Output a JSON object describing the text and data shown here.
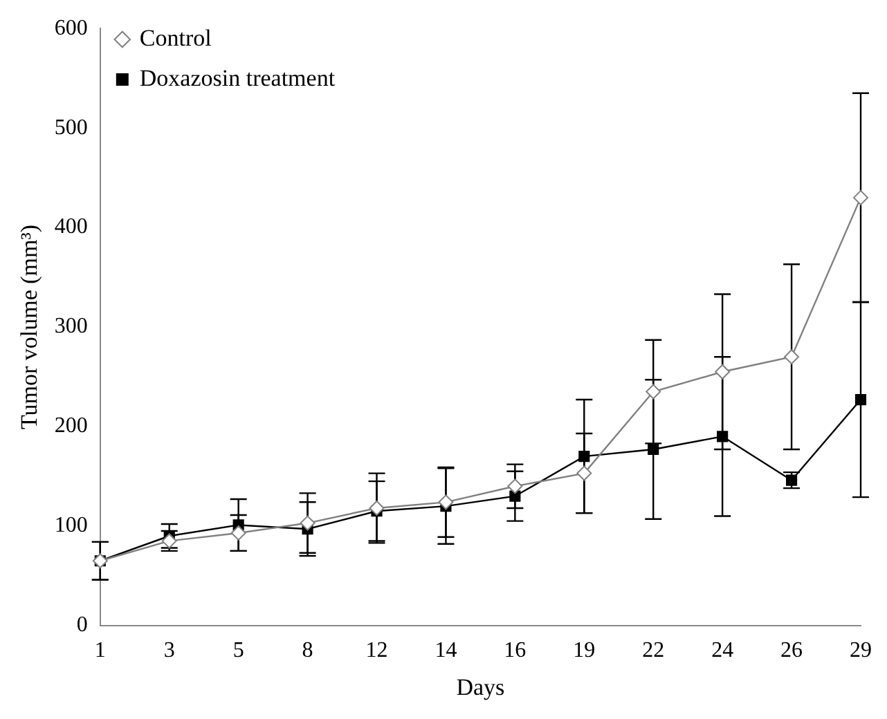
{
  "chart_data": {
    "type": "line",
    "xlabel": "Days",
    "ylabel": "Tumor volume (mm³)",
    "categories": [
      "1",
      "3",
      "5",
      "8",
      "12",
      "14",
      "16",
      "19",
      "22",
      "24",
      "26",
      "29"
    ],
    "series": [
      {
        "name": "Control",
        "color": "#808080",
        "marker": "diamond",
        "values": [
          65,
          85,
          93,
          103,
          118,
          124,
          140,
          153,
          235,
          255,
          270,
          430
        ],
        "errors": [
          19,
          10,
          18,
          30,
          35,
          35,
          22,
          40,
          52,
          78,
          93,
          105
        ]
      },
      {
        "name": "Doxazosin treatment",
        "color": "#000000",
        "marker": "square",
        "values": [
          65,
          90,
          101,
          97,
          115,
          120,
          130,
          170,
          177,
          190,
          146,
          227
        ],
        "errors": [
          19,
          12,
          26,
          27,
          30,
          38,
          25,
          57,
          70,
          80,
          8,
          98
        ]
      }
    ],
    "ylim": [
      0,
      600
    ],
    "yticks": [
      0,
      100,
      200,
      300,
      400,
      500,
      600
    ],
    "grid": false,
    "legend": "top left"
  }
}
